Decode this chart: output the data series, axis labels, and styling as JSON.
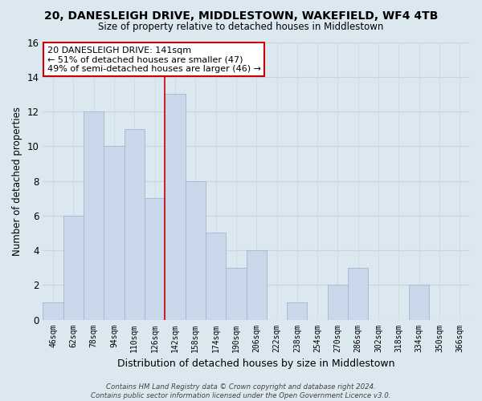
{
  "title": "20, DANESLEIGH DRIVE, MIDDLESTOWN, WAKEFIELD, WF4 4TB",
  "subtitle": "Size of property relative to detached houses in Middlestown",
  "xlabel": "Distribution of detached houses by size in Middlestown",
  "ylabel": "Number of detached properties",
  "bin_labels": [
    "46sqm",
    "62sqm",
    "78sqm",
    "94sqm",
    "110sqm",
    "126sqm",
    "142sqm",
    "158sqm",
    "174sqm",
    "190sqm",
    "206sqm",
    "222sqm",
    "238sqm",
    "254sqm",
    "270sqm",
    "286sqm",
    "302sqm",
    "318sqm",
    "334sqm",
    "350sqm",
    "366sqm"
  ],
  "bar_heights": [
    1,
    6,
    12,
    10,
    11,
    7,
    13,
    8,
    5,
    3,
    4,
    0,
    1,
    0,
    2,
    3,
    0,
    0,
    2,
    0,
    0
  ],
  "highlight_index": 6,
  "bar_color": "#c8d8ea",
  "bar_edge_color": "#a0b8d0",
  "highlight_line_color": "#cc0000",
  "annotation_text": "20 DANESLEIGH DRIVE: 141sqm\n← 51% of detached houses are smaller (47)\n49% of semi-detached houses are larger (46) →",
  "annotation_box_color": "#ffffff",
  "annotation_box_edgecolor": "#cc0000",
  "grid_color": "#c8d4e0",
  "background_color": "#dce8f0",
  "plot_bg_color": "#dce8f0",
  "footer_text": "Contains HM Land Registry data © Crown copyright and database right 2024.\nContains public sector information licensed under the Open Government Licence v3.0.",
  "ylim": [
    0,
    16
  ],
  "yticks": [
    0,
    2,
    4,
    6,
    8,
    10,
    12,
    14,
    16
  ]
}
